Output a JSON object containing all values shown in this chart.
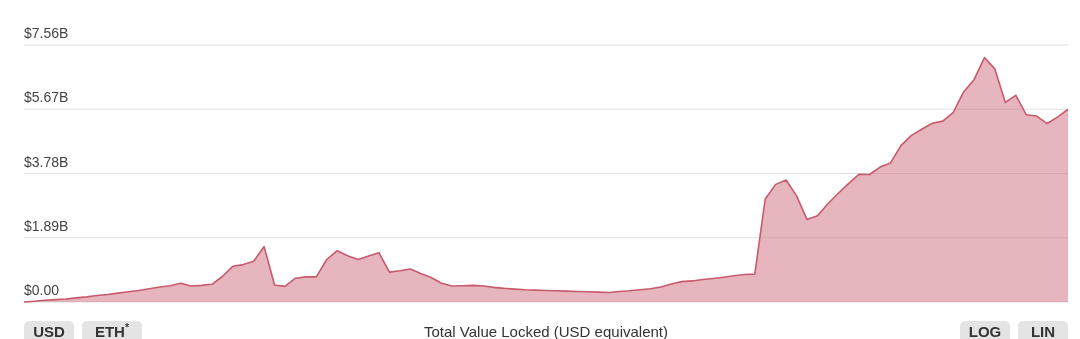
{
  "chart_data": {
    "type": "area",
    "xlabel": "Total Value Locked (USD equivalent)",
    "annotations": [
      "USD",
      "ETH$^{*}$",
      "LOG",
      "LIN"
    ],
    "categories": [
      null,
      null,
      null,
      null,
      null,
      null,
      null,
      null,
      null,
      null,
      null,
      null,
      null,
      null,
      null,
      null,
      null,
      null,
      null,
      null,
      null,
      null,
      null,
      null,
      null,
      null,
      null,
      null,
      null,
      null,
      null,
      null,
      null,
      null,
      null,
      null,
      null,
      null,
      null,
      null,
      null,
      null,
      null,
      null,
      null,
      null,
      null,
      null,
      null,
      null,
      null,
      null,
      null,
      null,
      null,
      null,
      null,
      null,
      null,
      null,
      null,
      null,
      null,
      null,
      null,
      null,
      null,
      null,
      null,
      null,
      null,
      null,
      null,
      null,
      null,
      null,
      null,
      null,
      null,
      null,
      null,
      null,
      null,
      null,
      null,
      null,
      null,
      null,
      null,
      null,
      null,
      null,
      null,
      null,
      null,
      null,
      null,
      null,
      null,
      null,
      null
    ],
    "series": [
      {
        "color": "#c85a6e",
        "values": [
          0,
          0.02,
          0.05,
          0.07,
          0.09,
          0.12,
          0.15,
          0.19,
          0.22,
          0.26,
          0.3,
          0.34,
          0.39,
          0.44,
          0.48,
          0.55,
          0.47,
          0.49,
          0.52,
          0.75,
          1.05,
          1.1,
          1.2,
          1.63,
          0.5,
          0.46,
          0.7,
          0.74,
          0.74,
          1.25,
          1.51,
          1.36,
          1.25,
          1.35,
          1.45,
          0.88,
          0.92,
          0.97,
          0.84,
          0.72,
          0.55,
          0.47,
          0.48,
          0.49,
          0.47,
          0.43,
          0.4,
          0.38,
          0.36,
          0.35,
          0.34,
          0.33,
          0.32,
          0.31,
          0.3,
          0.29,
          0.28,
          0.31,
          0.33,
          0.36,
          0.39,
          0.44,
          0.53,
          0.6,
          0.62,
          0.66,
          0.69,
          0.73,
          0.77,
          0.81,
          0.82,
          3.03,
          3.46,
          3.59,
          3.12,
          2.43,
          2.54,
          2.89,
          3.2,
          3.49,
          3.76,
          3.75,
          3.97,
          4.09,
          4.6,
          4.9,
          5.08,
          5.26,
          5.32,
          5.57,
          6.18,
          6.54,
          7.19,
          6.85,
          5.87,
          6.08,
          5.51,
          5.47,
          5.25,
          5.44,
          5.67
        ]
      }
    ],
    "ylim": [
      0,
      7.56
    ],
    "yticks": [
      {
        "value": 0,
        "label": "$0.00"
      },
      {
        "value": 1.89,
        "label": "$1.89B"
      },
      {
        "value": 3.78,
        "label": "$3.78B"
      },
      {
        "value": 5.67,
        "label": "$5.67B"
      },
      {
        "value": 7.56,
        "label": "$7.56B"
      }
    ],
    "tick_labels": "y",
    "grid": "y",
    "log": false
  }
}
